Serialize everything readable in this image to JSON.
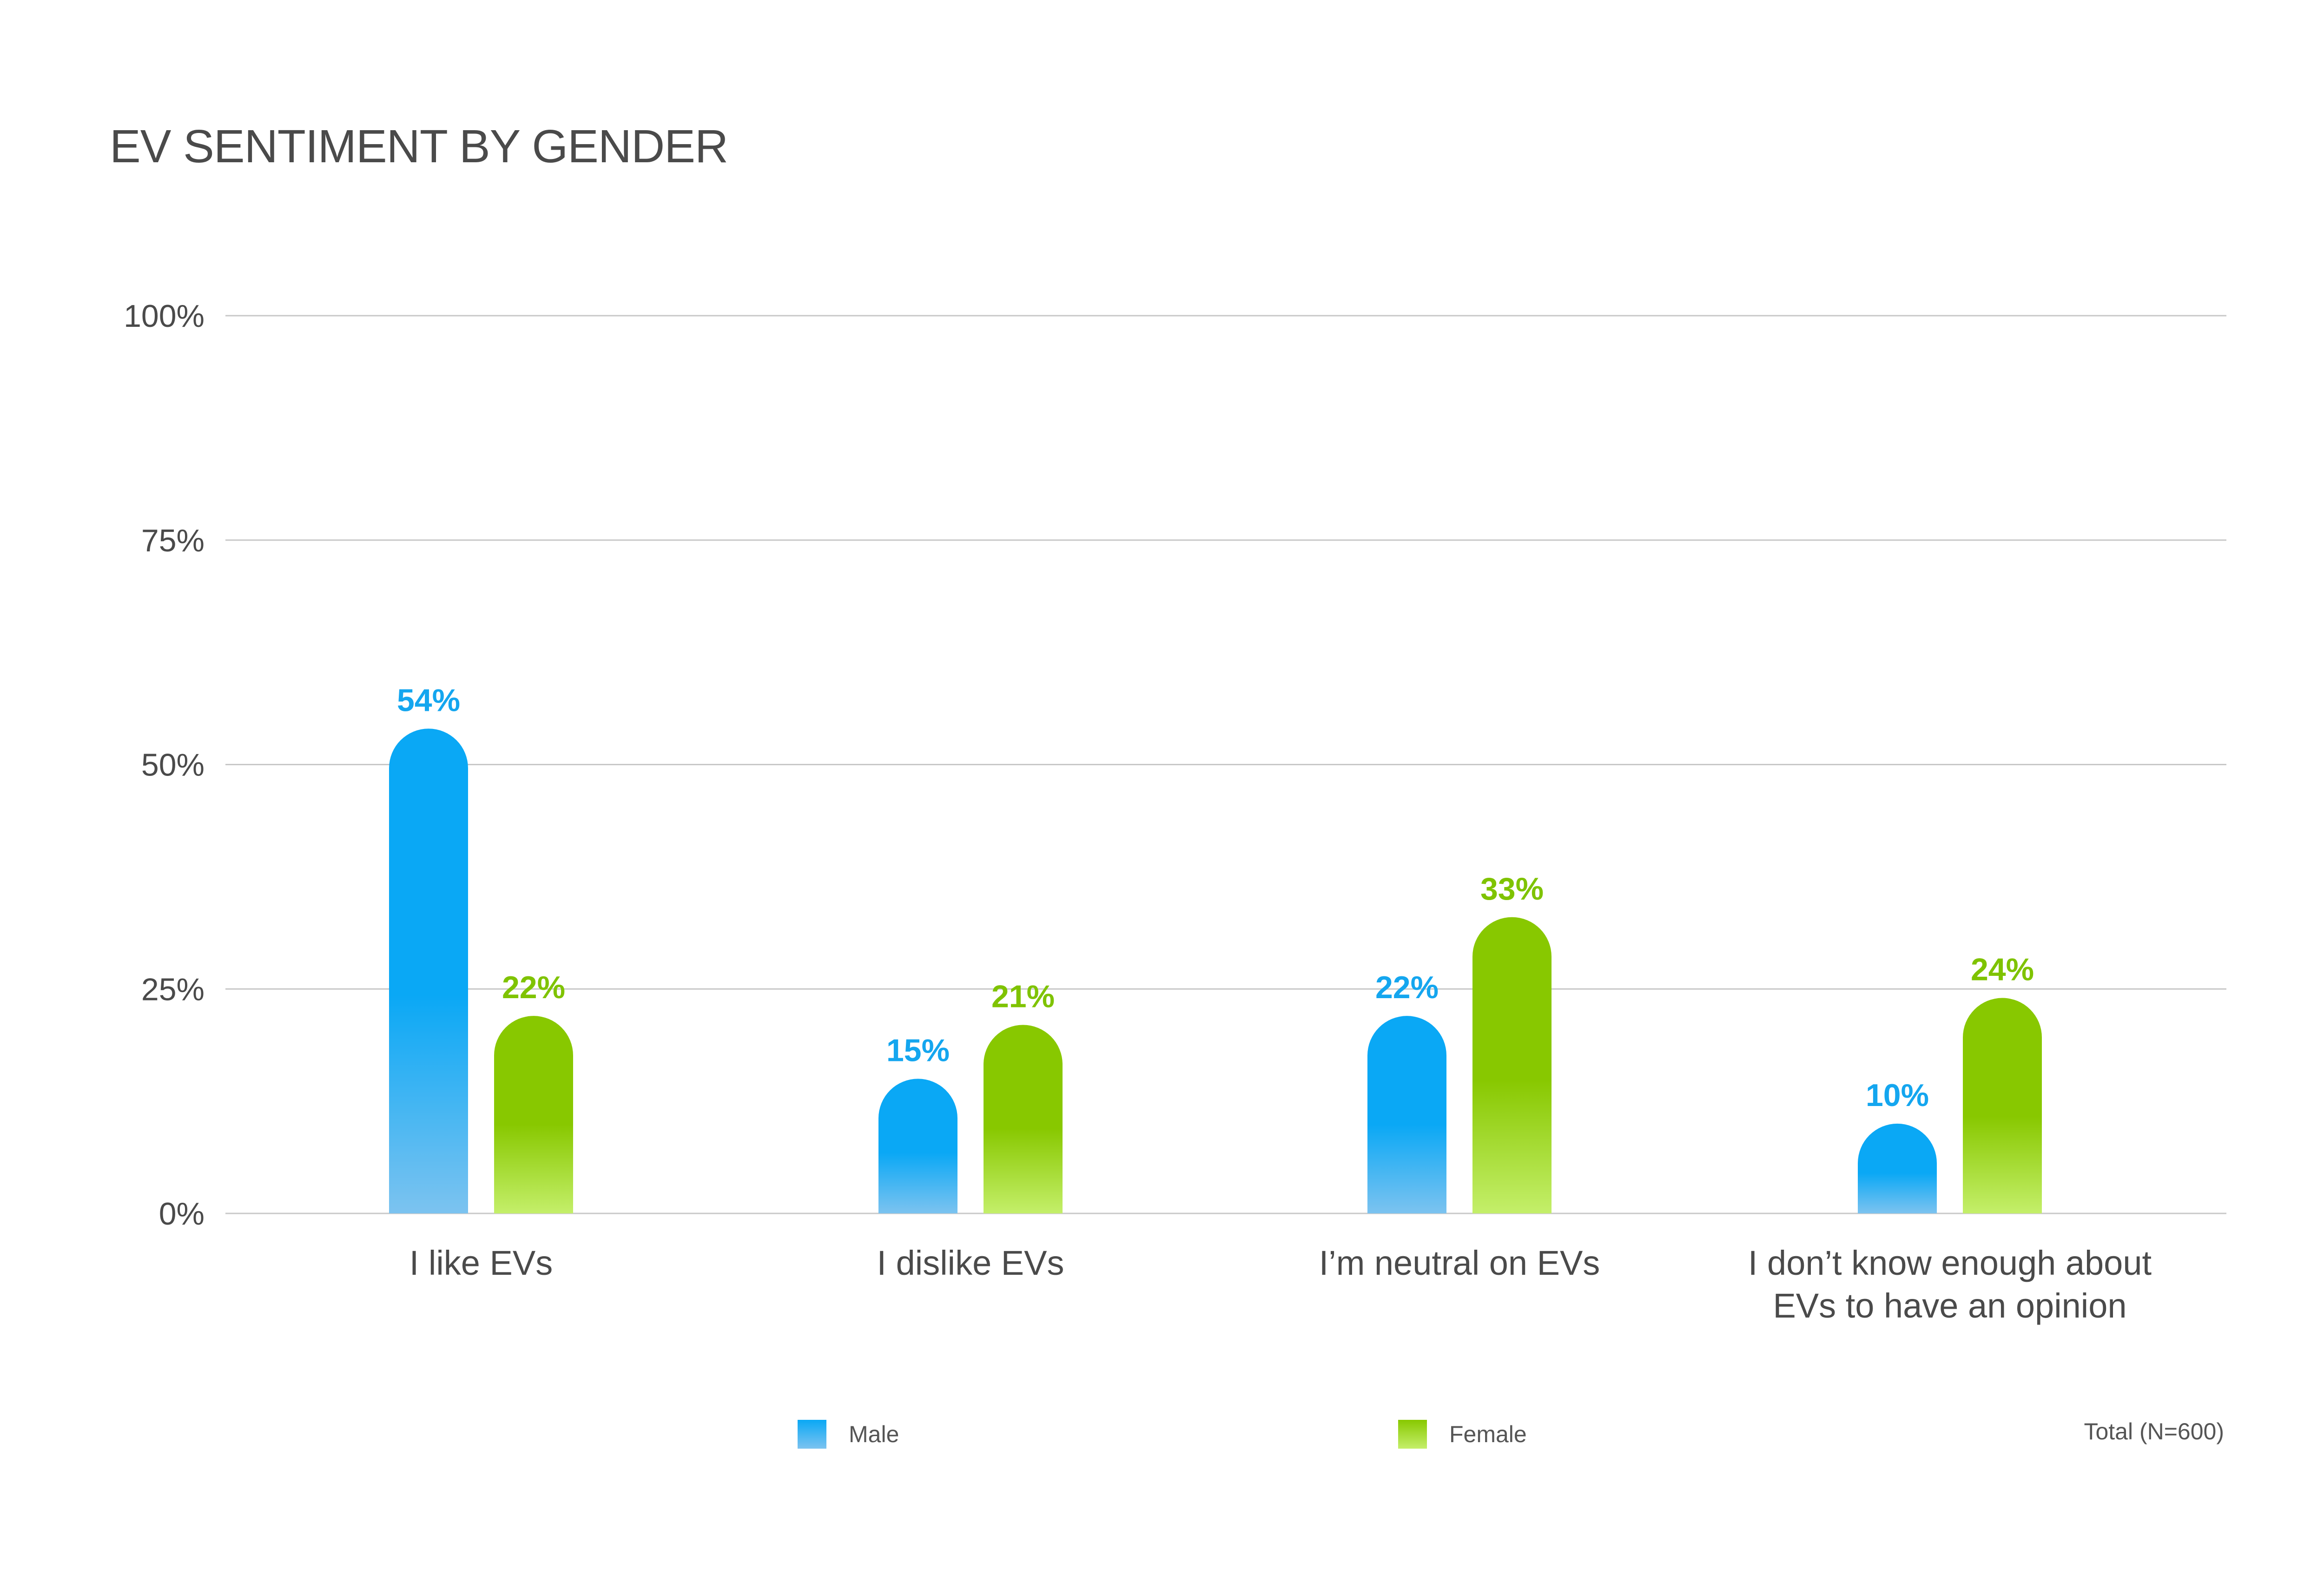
{
  "chart_data": {
    "type": "bar",
    "title": "EV SENTIMENT BY GENDER",
    "categories": [
      [
        "I like EVs"
      ],
      [
        "I dislike EVs"
      ],
      [
        "I’m neutral on EVs"
      ],
      [
        "I don’t know enough about",
        "EVs to have an opinion"
      ]
    ],
    "series": [
      {
        "name": "Male",
        "values": [
          54,
          15,
          22,
          10
        ],
        "labels": [
          "54%",
          "15%",
          "22%",
          "10%"
        ]
      },
      {
        "name": "Female",
        "values": [
          22,
          21,
          33,
          24
        ],
        "labels": [
          "22%",
          "21%",
          "33%",
          "24%"
        ]
      }
    ],
    "ylim": [
      0,
      100
    ],
    "yticks": [
      "0%",
      "25%",
      "50%",
      "75%",
      "100%"
    ],
    "grid": true,
    "legend": "bottom",
    "note": "Total (N=600)"
  },
  "colors": {
    "male_top": "#0aa8f5",
    "male_bottom": "#7cc3f0",
    "female_top": "#88c800",
    "female_bottom": "#c4ef6a",
    "male_label": "#14a6ef",
    "female_label": "#7fc300",
    "grid": "#c8c8c8",
    "axis_text": "#4a4a4a"
  }
}
